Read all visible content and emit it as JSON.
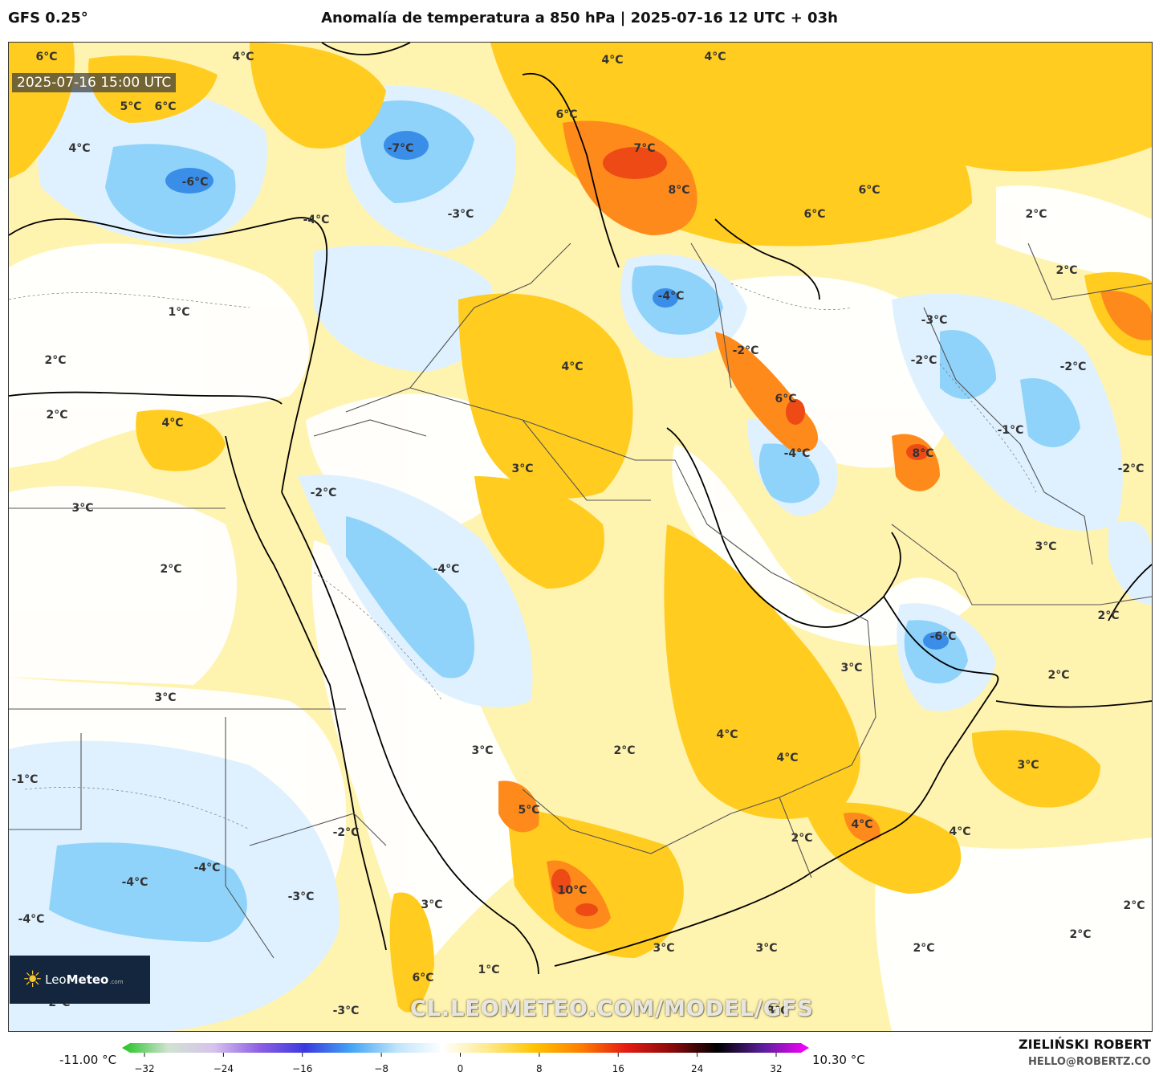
{
  "header": {
    "model": "GFS 0.25°",
    "title": "Anomalía de temperatura a 850 hPa | 2025-07-16 12 UTC + 03h"
  },
  "map": {
    "valid_time": "2025-07-16 15:00 UTC",
    "watermark": "CL.LEOMETEO.COM/MODEL/GFS",
    "labels": [
      "6°C",
      "4°C",
      "5°C",
      "6°C",
      "4°C",
      "-6°C",
      "-7°C",
      "4°C",
      "6°C",
      "-3°C",
      "-4°C",
      "1°C",
      "2°C",
      "2°C",
      "4°C",
      "3°C",
      "2°C",
      "-2°C",
      "-4°C",
      "3°C",
      "4°C",
      "-4°C",
      "-2°C",
      "4°C",
      "7°C",
      "8°C",
      "6°C",
      "6°C",
      "2°C",
      "2°C",
      "-3°C",
      "-2°C",
      "-2°C",
      "6°C",
      "-4°C",
      "-1°C",
      "8°C",
      "-2°C",
      "3°C",
      "2°C",
      "-6°C",
      "3°C",
      "2°C",
      "4°C",
      "4°C",
      "2°C",
      "3°C",
      "3°C",
      "-1°C",
      "-2°C",
      "-4°C",
      "-4°C",
      "-3°C",
      "-4°C",
      "3°C",
      "5°C",
      "10°C",
      "4°C",
      "2°C",
      "4°C",
      "2°C",
      "2°C",
      "3°C",
      "3°C",
      "2°C",
      "1°C",
      "6°C",
      "-2°C",
      "-3°C",
      "3°C",
      "3°C"
    ],
    "colors": {
      "warm_light": "#fff3b0",
      "warm": "#ffd21e",
      "warm_strong": "#ff9b1a",
      "hot": "#ee4a15",
      "cool_light": "#e8f4ff",
      "cool": "#bfe4fb",
      "cold": "#4fc3f7",
      "very_cold": "#1565c0"
    }
  },
  "logo": {
    "leo": "Leo",
    "meteo": "Meteo",
    "domain": ".com"
  },
  "colorbar": {
    "min_label": "-11.00 °C",
    "max_label": "10.30 °C",
    "ticks": [
      "−32",
      "−24",
      "−16",
      "−8",
      "0",
      "8",
      "16",
      "24",
      "32"
    ],
    "range": [
      -32,
      32
    ],
    "stops": [
      "#22c322",
      "#cfe3cf",
      "#d7c2ee",
      "#8d5fe3",
      "#3a3adf",
      "#42a5f5",
      "#bfe4fb",
      "#ffffff",
      "#ffe98a",
      "#ffc400",
      "#ff7f00",
      "#e51b13",
      "#8a0a0a",
      "#000000",
      "#5a1f9c",
      "#ff00ff"
    ]
  },
  "credit": {
    "author": "ZIELIŃSKI ROBERT",
    "email": "HELLO@ROBERTZ.CO"
  }
}
